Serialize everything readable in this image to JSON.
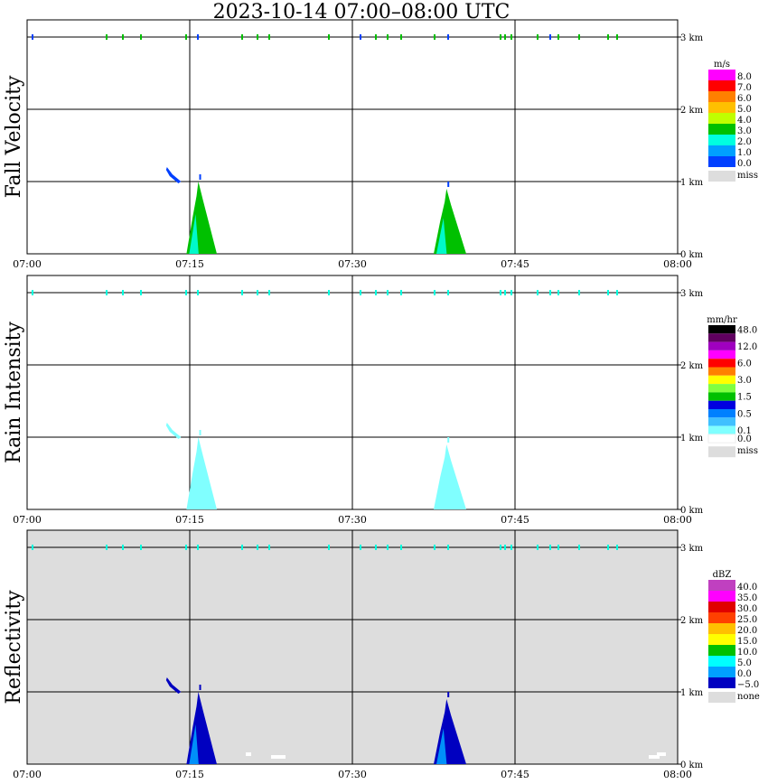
{
  "title": "2023-10-14   07:00–08:00 UTC",
  "x_ticks": [
    "07:00",
    "07:15",
    "07:30",
    "07:45",
    "08:00"
  ],
  "y_ticks": [
    "0 km",
    "1 km",
    "2 km",
    "3 km"
  ],
  "colors": {
    "axis": "#000000",
    "reflectivity_bg": "#dddddd",
    "miss": "#dddddd"
  },
  "panels": [
    {
      "id": "fall-velocity",
      "ylabel": "Fall Velocity",
      "unit": "m/s",
      "legend": [
        {
          "label": "8.0",
          "color": "#ff00ff"
        },
        {
          "label": "7.0",
          "color": "#ff0000"
        },
        {
          "label": "6.0",
          "color": "#ff8000"
        },
        {
          "label": "5.0",
          "color": "#ffc000"
        },
        {
          "label": "4.0",
          "color": "#c0ff00"
        },
        {
          "label": "3.0",
          "color": "#00c000"
        },
        {
          "label": "2.0",
          "color": "#00ffe0"
        },
        {
          "label": "1.0",
          "color": "#00a0ff"
        },
        {
          "label": "0.0",
          "color": "#0040ff"
        }
      ],
      "miss_label": "miss"
    },
    {
      "id": "rain-intensity",
      "ylabel": "Rain Intensity",
      "unit": "mm/hr",
      "legend": [
        {
          "label": "48.0",
          "color": "#000000"
        },
        {
          "label": "",
          "color": "#600060"
        },
        {
          "label": "12.0",
          "color": "#a000c0"
        },
        {
          "label": "",
          "color": "#ff00ff"
        },
        {
          "label": "6.0",
          "color": "#ff0000"
        },
        {
          "label": "",
          "color": "#ff8000"
        },
        {
          "label": "3.0",
          "color": "#ffff00"
        },
        {
          "label": "",
          "color": "#80ff40"
        },
        {
          "label": "1.5",
          "color": "#00c000"
        },
        {
          "label": "",
          "color": "#0000e0"
        },
        {
          "label": "0.5",
          "color": "#0080ff"
        },
        {
          "label": "",
          "color": "#40c0ff"
        },
        {
          "label": "0.1",
          "color": "#80ffff"
        },
        {
          "label": "0.0",
          "color": "#ffffff"
        }
      ],
      "miss_label": "miss"
    },
    {
      "id": "reflectivity",
      "ylabel": "Reflectivity",
      "unit": "dBZ",
      "legend": [
        {
          "label": "40.0",
          "color": "#c040c0"
        },
        {
          "label": "35.0",
          "color": "#ff00ff"
        },
        {
          "label": "30.0",
          "color": "#e00000"
        },
        {
          "label": "25.0",
          "color": "#ff4000"
        },
        {
          "label": "20.0",
          "color": "#ffc000"
        },
        {
          "label": "15.0",
          "color": "#ffff00"
        },
        {
          "label": "10.0",
          "color": "#00c000"
        },
        {
          "label": "5.0",
          "color": "#00ffff"
        },
        {
          "label": "0.0",
          "color": "#00a0ff"
        },
        {
          "label": "−5.0",
          "color": "#0000c0"
        }
      ],
      "miss_label": "none"
    }
  ],
  "chart_data": [
    {
      "type": "heatmap",
      "title": "2023-10-14   07:00–08:00 UTC",
      "ylabel": "Fall Velocity",
      "colorbar_unit": "m/s",
      "x_range": [
        "07:00",
        "08:00"
      ],
      "y_range_km": [
        0,
        3.1
      ],
      "grid": true,
      "observed_echoes": [
        {
          "time_start": "07:14.7",
          "time_end": "07:17.5",
          "height_km": [
            0,
            1.0
          ],
          "values_ms": "2.0–4.0"
        },
        {
          "time_start": "07:12.9",
          "time_end": "07:14.2",
          "height_km": [
            1.0,
            1.2
          ],
          "values_ms": "0.0–2.0"
        },
        {
          "time_start": "07:37.5",
          "time_end": "07:40.5",
          "height_km": [
            0,
            0.9
          ],
          "values_ms": "2.0–4.0"
        }
      ]
    },
    {
      "type": "heatmap",
      "ylabel": "Rain Intensity",
      "colorbar_unit": "mm/hr",
      "x_range": [
        "07:00",
        "08:00"
      ],
      "y_range_km": [
        0,
        3.1
      ],
      "grid": true,
      "observed_echoes": [
        {
          "time_start": "07:14.7",
          "time_end": "07:17.5",
          "height_km": [
            0,
            1.0
          ],
          "values_mmhr": "0.1"
        },
        {
          "time_start": "07:12.9",
          "time_end": "07:14.2",
          "height_km": [
            1.0,
            1.2
          ],
          "values_mmhr": "0.1"
        },
        {
          "time_start": "07:37.5",
          "time_end": "07:40.5",
          "height_km": [
            0,
            0.9
          ],
          "values_mmhr": "0.1"
        }
      ]
    },
    {
      "type": "heatmap",
      "ylabel": "Reflectivity",
      "colorbar_unit": "dBZ",
      "x_range": [
        "07:00",
        "08:00"
      ],
      "y_range_km": [
        0,
        3.1
      ],
      "grid": true,
      "observed_echoes": [
        {
          "time_start": "07:14.7",
          "time_end": "07:17.5",
          "height_km": [
            0,
            1.0
          ],
          "values_dbz": "−5.0–5.0"
        },
        {
          "time_start": "07:12.9",
          "time_end": "07:14.2",
          "height_km": [
            1.0,
            1.2
          ],
          "values_dbz": "−5.0–0.0"
        },
        {
          "time_start": "07:37.5",
          "time_end": "07:40.5",
          "height_km": [
            0,
            0.9
          ],
          "values_dbz": "−5.0–5.0"
        }
      ]
    }
  ]
}
